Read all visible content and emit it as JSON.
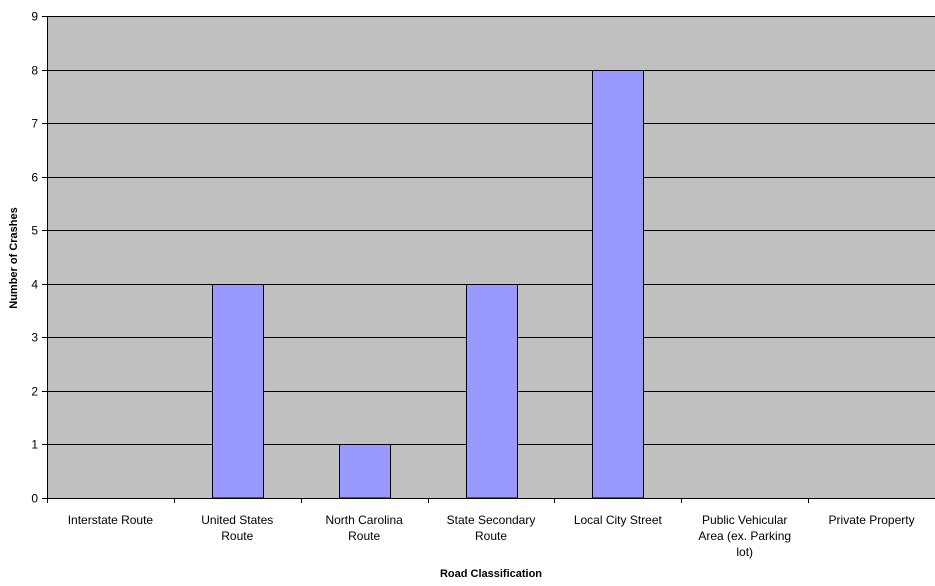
{
  "chart_data": {
    "type": "bar",
    "title": "",
    "xlabel": "Road Classification",
    "ylabel": "Number of Crashes",
    "ylim": [
      0,
      9
    ],
    "yticks": [
      0,
      1,
      2,
      3,
      4,
      5,
      6,
      7,
      8,
      9
    ],
    "grid": true,
    "legend": "none",
    "categories": [
      "Interstate Route",
      "United States Route",
      "North Carolina Route",
      "State Secondary Route",
      "Local City Street",
      "Public Vehicular Area (ex. Parking lot)",
      "Private Property"
    ],
    "category_lines": [
      [
        "Interstate Route"
      ],
      [
        "United States",
        "Route"
      ],
      [
        "North Carolina",
        "Route"
      ],
      [
        "State Secondary",
        "Route"
      ],
      [
        "Local City Street"
      ],
      [
        "Public Vehicular",
        "Area (ex. Parking",
        "lot)"
      ],
      [
        "Private Property"
      ]
    ],
    "values": [
      0,
      4,
      1,
      4,
      8,
      0,
      0
    ],
    "colors": {
      "plot_background": "#c0c0c0",
      "bar_fill": "#9999ff",
      "bar_stroke": "#000000",
      "grid": "#000000"
    }
  }
}
